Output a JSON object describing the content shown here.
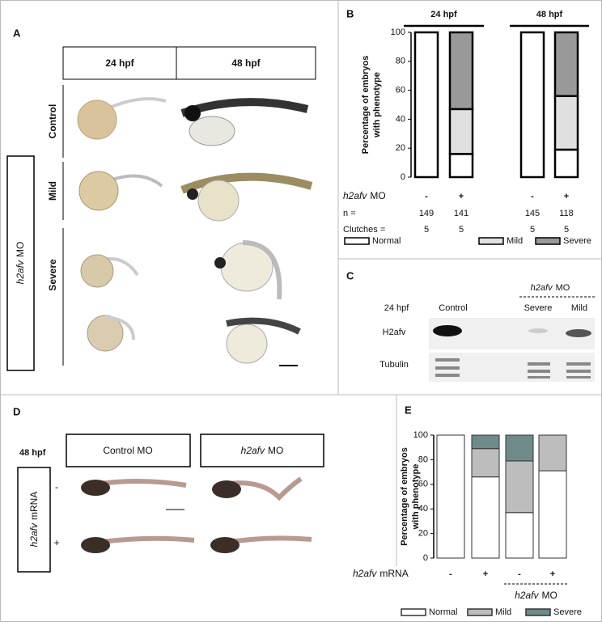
{
  "panel_a": {
    "letter": "A",
    "columns": [
      "24 hpf",
      "48 hpf"
    ],
    "rows": [
      "Control",
      "Mild",
      "Severe"
    ],
    "side_gene": "h2afv",
    "side_text": "MO"
  },
  "panel_c": {
    "letter": "C",
    "group_gene": "h2afv",
    "group_text": "MO",
    "stage": "24 hpf",
    "lanes": [
      "Control",
      "Severe",
      "Mild"
    ],
    "proteins": [
      "H2afv",
      "Tubulin"
    ]
  },
  "panel_d": {
    "letter": "D",
    "stage": "48 hpf",
    "col_1": "Control MO",
    "col_2_gene": "h2afv",
    "col_2_text": "MO",
    "side_gene": "h2afv",
    "side_text": "mRNA",
    "rows": [
      "-",
      "+"
    ]
  },
  "chart_data": [
    {
      "type": "bar",
      "stacked": true,
      "letter": "B",
      "y_label": [
        "Percentage of embryos",
        "with phenotype"
      ],
      "groups": [
        "24 hpf",
        "48 hpf"
      ],
      "categories": [
        "-",
        "+",
        "-",
        "+"
      ],
      "category_label": {
        "gene": "h2afv",
        "text": "MO"
      },
      "rows": [
        {
          "label": "n =",
          "values": [
            "149",
            "141",
            "145",
            "118"
          ]
        },
        {
          "label": "Clutches =",
          "values": [
            "5",
            "5",
            "5",
            "5"
          ]
        }
      ],
      "series": [
        {
          "name": "Normal",
          "color": "#ffffff",
          "values": [
            100,
            16,
            100,
            19
          ]
        },
        {
          "name": "Mild",
          "color": "#e0e0e0",
          "values": [
            0,
            31,
            0,
            37
          ]
        },
        {
          "name": "Severe",
          "color": "#999999",
          "values": [
            0,
            53,
            0,
            44
          ]
        }
      ],
      "ylim": [
        0,
        100
      ],
      "yticks": [
        0,
        20,
        40,
        60,
        80,
        100
      ],
      "legend": "bottom"
    },
    {
      "type": "bar",
      "stacked": true,
      "letter": "E",
      "y_label": [
        "Percentage of embryos",
        "with phenotype"
      ],
      "categories": [
        "-",
        "+",
        "-",
        "+"
      ],
      "category_label": {
        "gene": "h2afv",
        "text": "mRNA"
      },
      "subgroup_label": {
        "gene": "h2afv",
        "text": "MO"
      },
      "series": [
        {
          "name": "Normal",
          "color": "#ffffff",
          "values": [
            100,
            66,
            37,
            71
          ]
        },
        {
          "name": "Mild",
          "color": "#bdbdbd",
          "values": [
            0,
            23,
            42,
            29
          ]
        },
        {
          "name": "Severe",
          "color": "#6f8b89",
          "values": [
            0,
            11,
            21,
            0
          ]
        }
      ],
      "ylim": [
        0,
        100
      ],
      "yticks": [
        0,
        20,
        40,
        60,
        80,
        100
      ],
      "legend": "bottom"
    }
  ]
}
